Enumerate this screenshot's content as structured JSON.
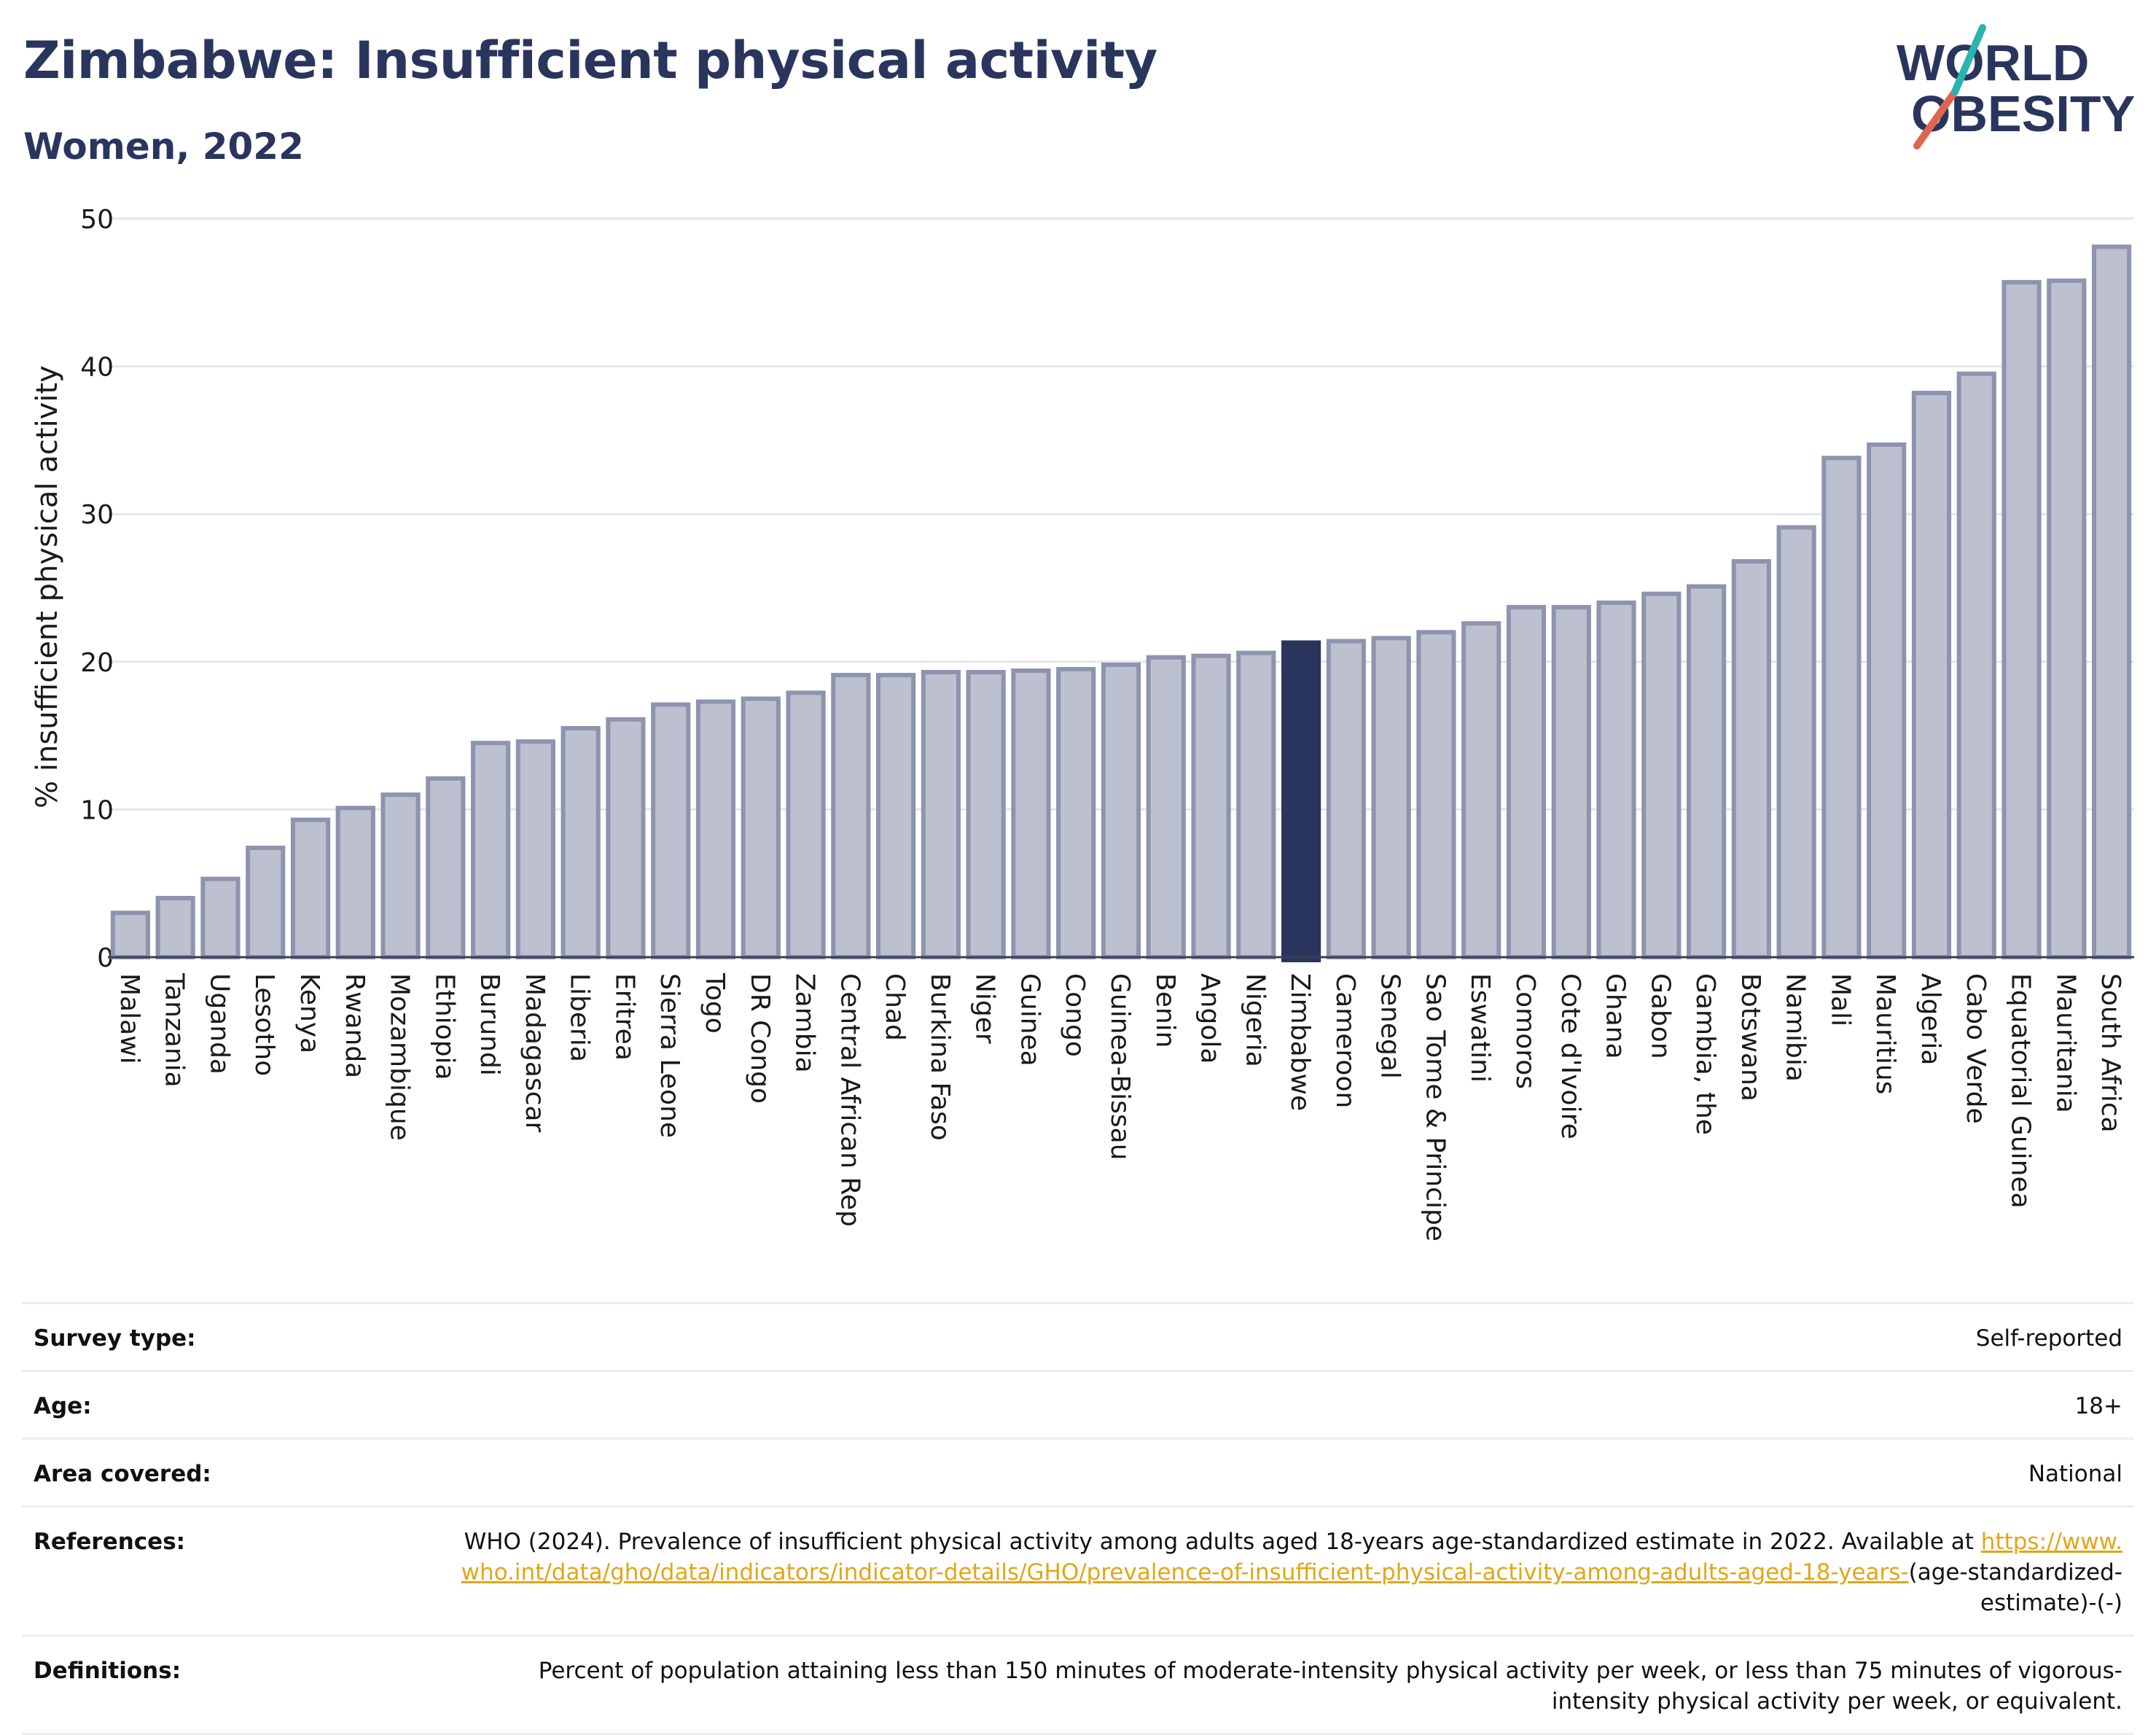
{
  "title": "Zimbabwe: Insufficient physical activity",
  "subtitle": "Women, 2022",
  "logo": {
    "line1": "WORLD",
    "line2": "OBESITY"
  },
  "colors": {
    "title": "#2a355e",
    "bar": "#bcc0cf",
    "bar_edge": "#8d94ae",
    "highlight": "#2a355e",
    "link": "#e2a617"
  },
  "chart_data": {
    "type": "bar",
    "title": "Zimbabwe: Insufficient physical activity",
    "subtitle": "Women, 2022",
    "ylabel": "% insufficient physical activity",
    "xlabel": "",
    "ylim": [
      0,
      50
    ],
    "yticks": [
      0,
      10,
      20,
      30,
      40,
      50
    ],
    "grid": true,
    "highlight": "Zimbabwe",
    "categories": [
      "Malawi",
      "Tanzania",
      "Uganda",
      "Lesotho",
      "Kenya",
      "Rwanda",
      "Mozambique",
      "Ethiopia",
      "Burundi",
      "Madagascar",
      "Liberia",
      "Eritrea",
      "Sierra Leone",
      "Togo",
      "DR Congo",
      "Zambia",
      "Central African Rep",
      "Chad",
      "Burkina Faso",
      "Niger",
      "Guinea",
      "Congo",
      "Guinea-Bissau",
      "Benin",
      "Angola",
      "Nigeria",
      "Zimbabwe",
      "Cameroon",
      "Senegal",
      "Sao Tome & Principe",
      "Eswatini",
      "Comoros",
      "Cote d'Ivoire",
      "Ghana",
      "Gabon",
      "Gambia, the",
      "Botswana",
      "Namibia",
      "Mali",
      "Mauritius",
      "Algeria",
      "Cabo Verde",
      "Equatorial Guinea",
      "Mauritania",
      "South Africa"
    ],
    "values": [
      3.0,
      4.0,
      5.3,
      7.4,
      9.3,
      10.1,
      11.0,
      12.1,
      14.5,
      14.6,
      15.5,
      16.1,
      17.1,
      17.3,
      17.5,
      17.9,
      19.1,
      19.1,
      19.3,
      19.3,
      19.4,
      19.5,
      19.8,
      20.3,
      20.4,
      20.6,
      21.3,
      21.4,
      21.6,
      22.0,
      22.6,
      23.7,
      23.7,
      24.0,
      24.6,
      25.1,
      26.8,
      29.1,
      33.8,
      34.7,
      38.2,
      39.5,
      45.7,
      45.8,
      48.1
    ]
  },
  "meta": [
    {
      "label": "Survey type:",
      "value": "Self-reported"
    },
    {
      "label": "Age:",
      "value": "18+"
    },
    {
      "label": "Area covered:",
      "value": "National"
    },
    {
      "label": "References:",
      "value": "WHO (2024). Prevalence of insufficient physical activity among adults aged 18-years age-standardized estimate in 2022. Available at",
      "link": "https://www.who.int/data/gho/data/indicators/indicator-details/GHO/prevalence-of-insufficient-physical-activity-among-adults-aged-18-years-",
      "value_after": "(age-standardized-estimate)-(-)"
    },
    {
      "label": "Definitions:",
      "value": "Percent of population attaining less than 150 minutes of moderate-intensity physical activity per week, or less than 75 minutes of vigorous-intensity physical activity per week, or equivalent."
    }
  ]
}
